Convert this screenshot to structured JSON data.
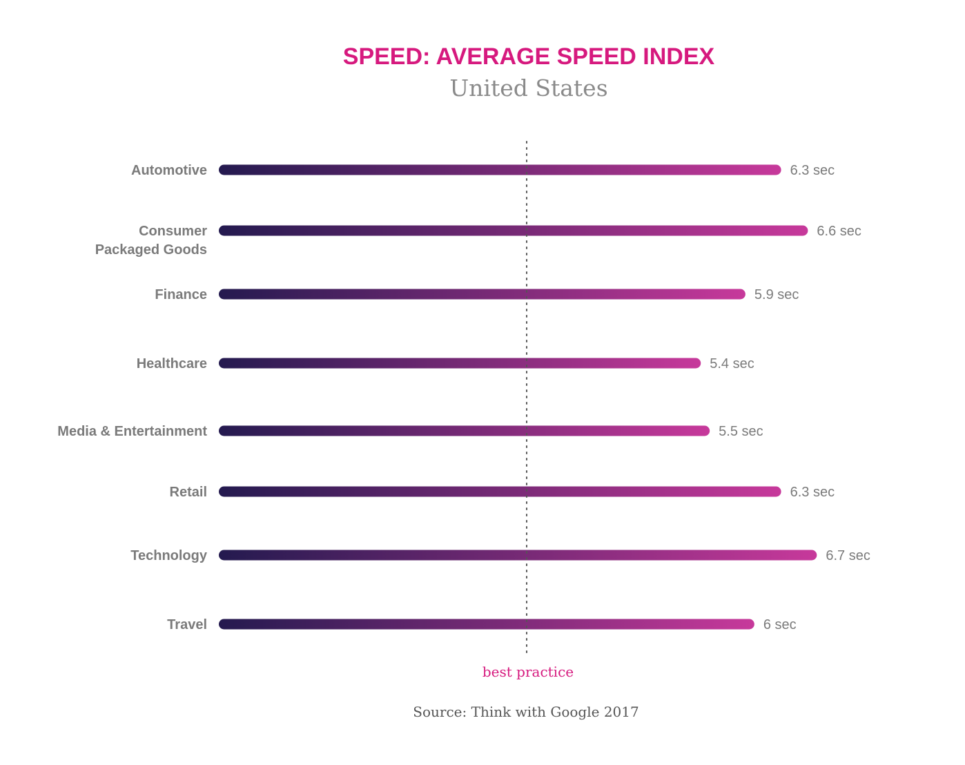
{
  "chart_data": {
    "type": "bar",
    "orientation": "horizontal",
    "title": "SPEED: AVERAGE SPEED INDEX",
    "subtitle": "United States",
    "categories": [
      "Automotive",
      "Consumer Packaged Goods",
      "Finance",
      "Healthcare",
      "Media & Entertainment",
      "Retail",
      "Technology",
      "Travel"
    ],
    "category_lines": [
      [
        "Automotive"
      ],
      [
        "Consumer",
        "Packaged Goods"
      ],
      [
        "Finance"
      ],
      [
        "Healthcare"
      ],
      [
        "Media & Entertainment"
      ],
      [
        "Retail"
      ],
      [
        "Technology"
      ],
      [
        "Travel"
      ]
    ],
    "values": [
      6.3,
      6.6,
      5.9,
      5.4,
      5.5,
      6.3,
      6.7,
      6
    ],
    "value_labels": [
      "6.3 sec",
      "6.6 sec",
      "5.9 sec",
      "5.4 sec",
      "5.5 sec",
      "6.3 sec",
      "6.7 sec",
      "6 sec"
    ],
    "unit": "sec",
    "reference_line": {
      "value": 3,
      "label": "best practice",
      "style": "dotted"
    },
    "xlim": [
      0,
      7.2
    ],
    "grid": false,
    "source": "Source: Think with Google 2017"
  },
  "colors": {
    "title": "#d6197e",
    "subtitle": "#8a8a8a",
    "label": "#7a7a7a",
    "bar_start": "#241a4f",
    "bar_end": "#c7399b",
    "reference_line": "#555555",
    "reference_label": "#d6197e"
  }
}
